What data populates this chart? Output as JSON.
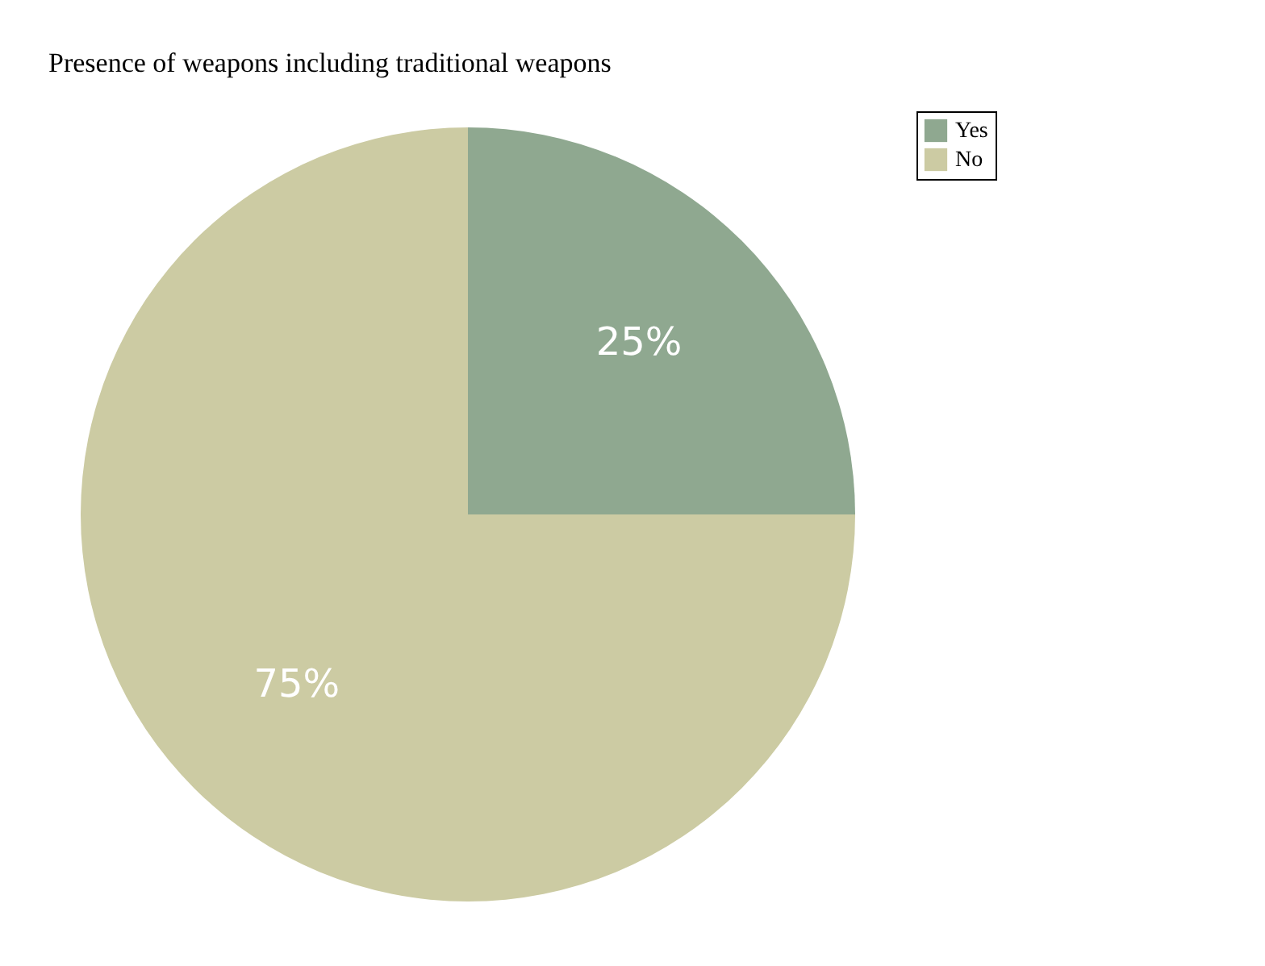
{
  "chart_data": {
    "type": "pie",
    "title": "Presence of weapons including traditional weapons",
    "categories": [
      "Yes",
      "No"
    ],
    "values": [
      25,
      75
    ],
    "value_labels": [
      "25%",
      "75%"
    ],
    "colors": [
      "#8fa890",
      "#cccba3"
    ],
    "legend": "right"
  }
}
